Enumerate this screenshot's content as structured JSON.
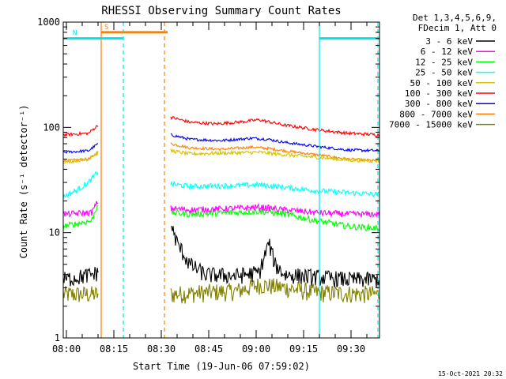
{
  "chart_data": {
    "type": "line",
    "title": "RHESSI Observing Summary Count Rates",
    "xlabel": "Start Time (19-Jun-06 07:59:02)",
    "ylabel": "Count Rate (s⁻¹ detector⁻¹)",
    "yscale": "log",
    "ylim": [
      1,
      1000
    ],
    "xlim_minutes": [
      0,
      100
    ],
    "x_ticks": [
      {
        "label": "08:00",
        "minute": 1
      },
      {
        "label": "08:15",
        "minute": 16
      },
      {
        "label": "08:30",
        "minute": 31
      },
      {
        "label": "08:45",
        "minute": 46
      },
      {
        "label": "09:00",
        "minute": 61
      },
      {
        "label": "09:15",
        "minute": 76
      },
      {
        "label": "09:30",
        "minute": 91
      }
    ],
    "y_ticks": [
      {
        "label": "1",
        "value": 1
      },
      {
        "label": "10",
        "value": 10
      },
      {
        "label": "100",
        "value": 100
      },
      {
        "label": "1000",
        "value": 1000
      }
    ],
    "legend_header": [
      "Det 1,3,4,5,6,9,",
      "FDecim 1, Att 0"
    ],
    "legend_position": "top-right outside",
    "timestamp": "15-Oct-2021 20:32",
    "flags": [
      {
        "label": "S",
        "start_minute": 12,
        "end_minute": 33,
        "level": 800,
        "color": "#ff8000"
      },
      {
        "label": "N",
        "start_minute": 0,
        "end_minute": 19,
        "level": 700,
        "color": "#00e5ee"
      },
      {
        "label": "",
        "start_minute": 81,
        "end_minute": 100,
        "level": 700,
        "color": "#00e5ee"
      }
    ],
    "event_lines": [
      {
        "minute": 12,
        "style": "solid",
        "color": "#ff8000"
      },
      {
        "minute": 32,
        "style": "dashed",
        "color": "#ff8000"
      },
      {
        "minute": 19,
        "style": "dashed",
        "color": "#00e5ee"
      },
      {
        "minute": 81,
        "style": "solid",
        "color": "#00e5ee"
      },
      {
        "minute": 99.5,
        "style": "dashed",
        "color": "#00e5ee"
      }
    ],
    "gap_minutes": [
      11,
      34
    ],
    "series": [
      {
        "name": "3 - 6 keV",
        "color": "#000000",
        "noise": 0.18,
        "points": [
          [
            0,
            3.6
          ],
          [
            5,
            3.8
          ],
          [
            9,
            4.0
          ],
          [
            11,
            4.2
          ],
          [
            34,
            12
          ],
          [
            36,
            8
          ],
          [
            40,
            5
          ],
          [
            45,
            4
          ],
          [
            55,
            3.9
          ],
          [
            62,
            4.2
          ],
          [
            65,
            8
          ],
          [
            67,
            5
          ],
          [
            70,
            4
          ],
          [
            80,
            3.8
          ],
          [
            90,
            3.6
          ],
          [
            100,
            3.6
          ]
        ]
      },
      {
        "name": "6 - 12 keV",
        "color": "#ff00ff",
        "noise": 0.07,
        "points": [
          [
            0,
            15
          ],
          [
            9,
            15.5
          ],
          [
            11,
            20
          ],
          [
            34,
            17
          ],
          [
            40,
            16.5
          ],
          [
            55,
            17
          ],
          [
            62,
            17.5
          ],
          [
            70,
            16.5
          ],
          [
            80,
            15.5
          ],
          [
            90,
            15
          ],
          [
            100,
            15
          ]
        ]
      },
      {
        "name": "12 - 25 keV",
        "color": "#00ff00",
        "noise": 0.07,
        "points": [
          [
            0,
            11.5
          ],
          [
            9,
            13
          ],
          [
            11,
            19
          ],
          [
            34,
            15.5
          ],
          [
            40,
            15
          ],
          [
            55,
            15.5
          ],
          [
            62,
            16
          ],
          [
            70,
            15
          ],
          [
            80,
            13
          ],
          [
            90,
            11.5
          ],
          [
            100,
            11
          ]
        ]
      },
      {
        "name": "25 - 50 keV",
        "color": "#00ffff",
        "noise": 0.06,
        "points": [
          [
            0,
            22
          ],
          [
            4,
            25
          ],
          [
            8,
            30
          ],
          [
            11,
            38
          ],
          [
            34,
            29
          ],
          [
            40,
            27.5
          ],
          [
            55,
            28
          ],
          [
            62,
            28.5
          ],
          [
            70,
            27
          ],
          [
            80,
            25
          ],
          [
            90,
            24
          ],
          [
            100,
            23
          ]
        ]
      },
      {
        "name": "50 - 100 keV",
        "color": "#d6c200",
        "noise": 0.04,
        "points": [
          [
            0,
            47
          ],
          [
            8,
            50
          ],
          [
            11,
            58
          ],
          [
            34,
            60
          ],
          [
            40,
            56
          ],
          [
            50,
            57
          ],
          [
            62,
            58
          ],
          [
            70,
            55
          ],
          [
            80,
            52
          ],
          [
            90,
            49
          ],
          [
            100,
            48
          ]
        ]
      },
      {
        "name": "100 - 300 keV",
        "color": "#ff0000",
        "noise": 0.035,
        "points": [
          [
            0,
            85
          ],
          [
            8,
            88
          ],
          [
            11,
            105
          ],
          [
            34,
            125
          ],
          [
            40,
            112
          ],
          [
            48,
            108
          ],
          [
            55,
            112
          ],
          [
            62,
            118
          ],
          [
            70,
            105
          ],
          [
            80,
            95
          ],
          [
            90,
            88
          ],
          [
            100,
            85
          ]
        ]
      },
      {
        "name": "300 - 800 keV",
        "color": "#0000ff",
        "noise": 0.03,
        "points": [
          [
            0,
            58
          ],
          [
            8,
            60
          ],
          [
            11,
            70
          ],
          [
            34,
            85
          ],
          [
            40,
            77
          ],
          [
            50,
            75
          ],
          [
            60,
            79
          ],
          [
            65,
            77
          ],
          [
            70,
            72
          ],
          [
            80,
            66
          ],
          [
            90,
            61
          ],
          [
            100,
            60
          ]
        ]
      },
      {
        "name": "800 - 7000 keV",
        "color": "#ff8000",
        "noise": 0.03,
        "points": [
          [
            0,
            48
          ],
          [
            8,
            50
          ],
          [
            11,
            58
          ],
          [
            34,
            70
          ],
          [
            40,
            64
          ],
          [
            50,
            62
          ],
          [
            60,
            65
          ],
          [
            65,
            63
          ],
          [
            70,
            60
          ],
          [
            80,
            55
          ],
          [
            90,
            50
          ],
          [
            100,
            48
          ]
        ]
      },
      {
        "name": "7000 - 15000 keV",
        "color": "#808000",
        "noise": 0.2,
        "points": [
          [
            0,
            2.6
          ],
          [
            11,
            2.6
          ],
          [
            34,
            2.6
          ],
          [
            55,
            2.8
          ],
          [
            62,
            3.2
          ],
          [
            70,
            3.0
          ],
          [
            80,
            2.7
          ],
          [
            100,
            2.6
          ]
        ]
      }
    ]
  }
}
